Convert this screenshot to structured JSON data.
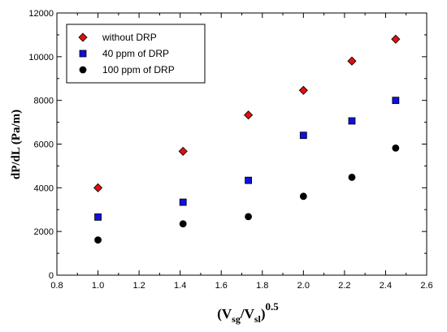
{
  "chart_data": {
    "type": "scatter",
    "xlabel": {
      "base": "(V",
      "sub1": "sg",
      "mid": "/V",
      "sub2": "sl",
      "close": ")",
      "sup": "0.5"
    },
    "ylabel": "dP/dL (Pa/m)",
    "xlim": [
      0.8,
      2.6
    ],
    "ylim": [
      0,
      12000
    ],
    "xticks": [
      "0.8",
      "1.0",
      "1.2",
      "1.4",
      "1.6",
      "1.8",
      "2.0",
      "2.2",
      "2.4",
      "2.6"
    ],
    "yticks": [
      "0",
      "2000",
      "4000",
      "6000",
      "8000",
      "10000",
      "12000"
    ],
    "grid": false,
    "legend_position": "top-left",
    "series": [
      {
        "name": "without DRP",
        "marker": "diamond",
        "color": "#e01010",
        "x": [
          1.0,
          1.414,
          1.732,
          2.0,
          2.236,
          2.449
        ],
        "y": [
          4000,
          5670,
          7330,
          8460,
          9800,
          10800
        ]
      },
      {
        "name": "40 ppm of DRP",
        "marker": "square",
        "color": "#1010e0",
        "x": [
          1.0,
          1.414,
          1.732,
          2.0,
          2.236,
          2.449
        ],
        "y": [
          2660,
          3340,
          4340,
          6400,
          7060,
          8000
        ]
      },
      {
        "name": "100 ppm of DRP",
        "marker": "circle",
        "color": "#000000",
        "x": [
          1.0,
          1.414,
          1.732,
          2.0,
          2.236,
          2.449
        ],
        "y": [
          1610,
          2350,
          2680,
          3610,
          4480,
          5820
        ]
      }
    ]
  }
}
